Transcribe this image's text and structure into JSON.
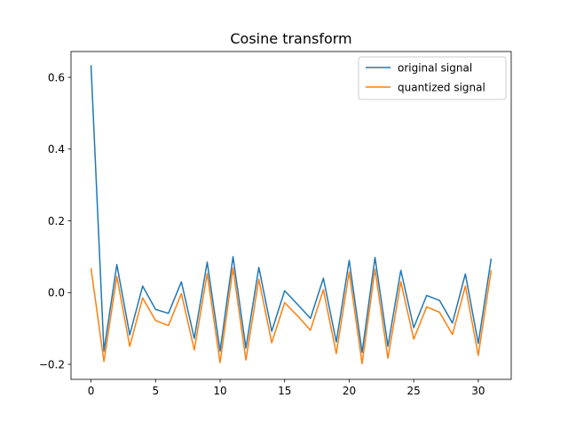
{
  "chart_data": {
    "type": "line",
    "title": "Cosine transform",
    "xlabel": "",
    "ylabel": "",
    "xlim": [
      -1.55,
      32.55
    ],
    "ylim": [
      -0.242,
      0.672
    ],
    "xticks": [
      0,
      5,
      10,
      15,
      20,
      25,
      30
    ],
    "xtick_labels": [
      "0",
      "5",
      "10",
      "15",
      "20",
      "25",
      "30"
    ],
    "yticks": [
      -0.2,
      0.0,
      0.2,
      0.4,
      0.6
    ],
    "ytick_labels": [
      "−0.2",
      "0.0",
      "0.2",
      "0.4",
      "0.6"
    ],
    "grid": false,
    "legend_position": "top-right",
    "x": [
      0,
      1,
      2,
      3,
      4,
      5,
      6,
      7,
      8,
      9,
      10,
      11,
      12,
      13,
      14,
      15,
      16,
      17,
      18,
      19,
      20,
      21,
      22,
      23,
      24,
      25,
      26,
      27,
      28,
      29,
      30,
      31
    ],
    "series": [
      {
        "name": "original signal",
        "color": "#1f77b4",
        "values": [
          0.634,
          -0.163,
          0.078,
          -0.118,
          0.018,
          -0.047,
          -0.058,
          0.03,
          -0.128,
          0.085,
          -0.163,
          0.1,
          -0.155,
          0.07,
          -0.108,
          0.005,
          -0.033,
          -0.072,
          0.04,
          -0.138,
          0.09,
          -0.167,
          0.098,
          -0.15,
          0.062,
          -0.098,
          -0.008,
          -0.022,
          -0.085,
          0.052,
          -0.142,
          0.095
        ]
      },
      {
        "name": "quantized signal",
        "color": "#ff7f0e",
        "values": [
          0.068,
          -0.192,
          0.045,
          -0.15,
          -0.015,
          -0.078,
          -0.092,
          -0.003,
          -0.16,
          0.053,
          -0.195,
          0.068,
          -0.188,
          0.037,
          -0.14,
          -0.028,
          -0.065,
          -0.105,
          0.008,
          -0.17,
          0.057,
          -0.198,
          0.065,
          -0.183,
          0.03,
          -0.13,
          -0.04,
          -0.055,
          -0.117,
          0.018,
          -0.175,
          0.062
        ]
      }
    ]
  }
}
